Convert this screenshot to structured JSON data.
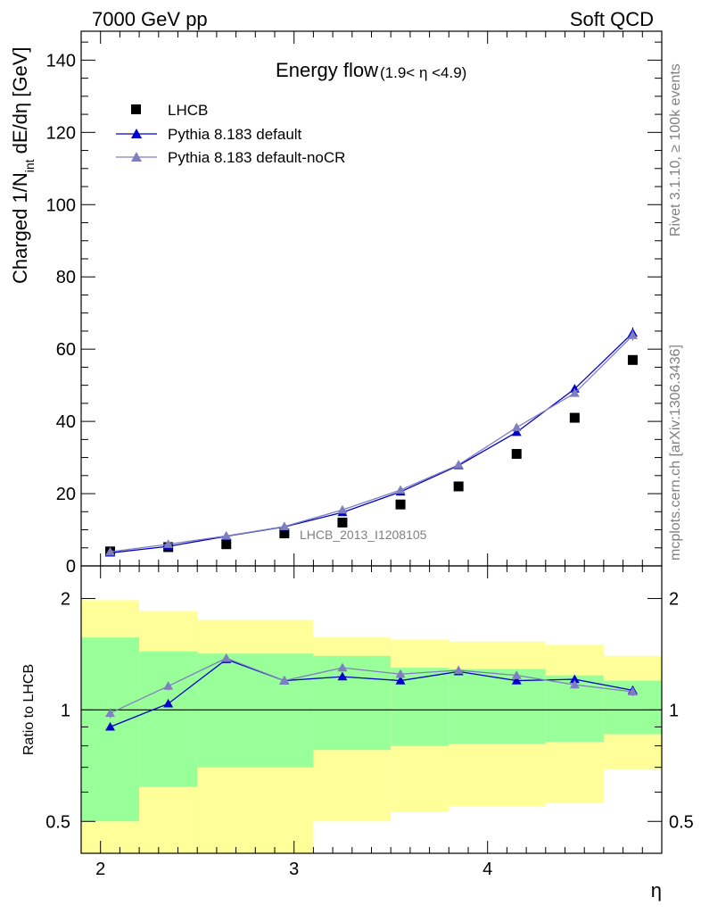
{
  "header": {
    "left": "7000 GeV pp",
    "right": "Soft QCD"
  },
  "side_labels": {
    "rivet": "Rivet 3.1.10, ≥ 100k events",
    "mcplots": "mcplots.cern.ch [arXiv:1306.3436]"
  },
  "chart_data": [
    {
      "type": "scatter",
      "name": "main",
      "title": "Energy flow",
      "title_sub": "(1.9< η <4.9)",
      "ylabel_main": "Charged 1/N",
      "ylabel_sub": "int",
      "ylabel_tail": " dE/dη [GeV]",
      "xlabel": "η",
      "analysis_label": "LHCB_2013_I1208105",
      "xlim": [
        1.9,
        4.9
      ],
      "ylim": [
        0,
        148
      ],
      "xticks": [
        2,
        3,
        4
      ],
      "yticks": [
        0,
        20,
        40,
        60,
        80,
        100,
        120,
        140
      ],
      "ytick_labels": [
        "0",
        "20",
        "40",
        "60",
        "80",
        "100",
        "120",
        "140"
      ],
      "x": [
        2.05,
        2.35,
        2.65,
        2.95,
        3.25,
        3.55,
        3.85,
        4.15,
        4.45,
        4.75
      ],
      "series": [
        {
          "name": "LHCB",
          "color": "#000000",
          "marker": "square",
          "line": false,
          "values": [
            4.0,
            5.2,
            6.0,
            9.0,
            12.0,
            17.0,
            22.0,
            31.0,
            41.0,
            57.0
          ]
        },
        {
          "name": "Pythia 8.183 default",
          "color": "#0000cc",
          "marker": "triangle",
          "line": true,
          "values": [
            3.6,
            5.4,
            8.2,
            10.8,
            14.8,
            20.5,
            27.8,
            37.0,
            49.0,
            64.5
          ],
          "errors": [
            0.2,
            0.2,
            0.2,
            0.3,
            0.3,
            0.4,
            0.5,
            0.6,
            1.0,
            1.5
          ]
        },
        {
          "name": "Pythia 8.183 default-noCR",
          "color": "#7f7fbf",
          "marker": "triangle",
          "line": true,
          "values": [
            3.9,
            6.0,
            8.3,
            10.9,
            15.5,
            21.0,
            28.0,
            38.3,
            47.8,
            63.8
          ],
          "errors": [
            0.2,
            0.2,
            0.2,
            0.3,
            0.3,
            0.4,
            0.5,
            0.6,
            1.0,
            1.5
          ]
        }
      ],
      "legend": [
        "LHCB",
        "Pythia 8.183 default",
        "Pythia 8.183 default-noCR"
      ]
    },
    {
      "type": "scatter",
      "name": "ratio",
      "ylabel": "Ratio to LHCB",
      "xlabel": "η",
      "yscale": "log",
      "ylim": [
        0.41,
        2.45
      ],
      "yticks": [
        0.5,
        1,
        2
      ],
      "ytick_labels": [
        "0.5",
        "1",
        "2"
      ],
      "band_edges": [
        1.9,
        2.2,
        2.5,
        3.1,
        3.5,
        3.8,
        4.3,
        4.6,
        4.9
      ],
      "band_yellow_lo": [
        0.31,
        0.41,
        0.41,
        0.5,
        0.53,
        0.55,
        0.56,
        0.69,
        0.72
      ],
      "band_yellow_hi": [
        1.98,
        1.85,
        1.75,
        1.57,
        1.55,
        1.53,
        1.5,
        1.4,
        1.38
      ],
      "band_green_lo": [
        0.5,
        0.62,
        0.7,
        0.78,
        0.8,
        0.81,
        0.82,
        0.86,
        0.87
      ],
      "band_green_hi": [
        1.57,
        1.44,
        1.42,
        1.4,
        1.3,
        1.29,
        1.24,
        1.2,
        1.19
      ],
      "series": [
        {
          "name": "Pythia 8.183 default",
          "color": "#0000cc",
          "values": [
            0.9,
            1.04,
            1.37,
            1.2,
            1.23,
            1.2,
            1.27,
            1.2,
            1.21,
            1.13
          ],
          "errors": [
            0.02,
            0.02,
            0.03,
            0.02,
            0.02,
            0.02,
            0.02,
            0.02,
            0.03,
            0.03
          ]
        },
        {
          "name": "Pythia 8.183 default-noCR",
          "color": "#7f7fbf",
          "values": [
            0.98,
            1.16,
            1.38,
            1.2,
            1.3,
            1.25,
            1.28,
            1.24,
            1.17,
            1.12
          ],
          "errors": [
            0.03,
            0.03,
            0.03,
            0.02,
            0.03,
            0.03,
            0.03,
            0.03,
            0.03,
            0.03
          ]
        }
      ],
      "reference_value": 1
    }
  ]
}
